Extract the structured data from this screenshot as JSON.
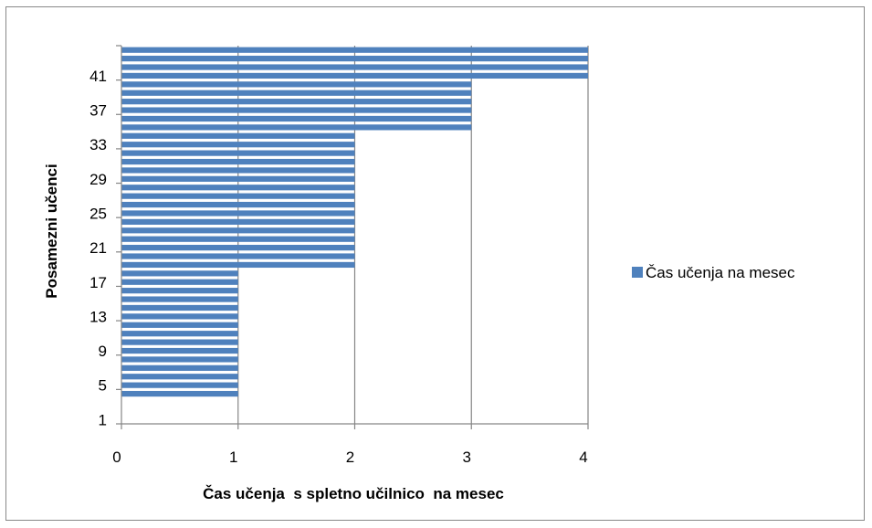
{
  "chart_data": {
    "type": "bar",
    "orientation": "horizontal",
    "title": "",
    "xlabel": "Čas učenja  s spletno učilnico  na mesec",
    "ylabel": "Posamezni učenci",
    "xlim": [
      0,
      4
    ],
    "x_ticks": [
      "0",
      "1",
      "2",
      "3",
      "4"
    ],
    "y_tick_labels": [
      "1",
      "5",
      "9",
      "13",
      "17",
      "21",
      "25",
      "29",
      "33",
      "37",
      "41"
    ],
    "grid": "vertical",
    "legend_position": "right",
    "categories": [
      "1",
      "2",
      "3",
      "4",
      "5",
      "6",
      "7",
      "8",
      "9",
      "10",
      "11",
      "12",
      "13",
      "14",
      "15",
      "16",
      "17",
      "18",
      "19",
      "20",
      "21",
      "22",
      "23",
      "24",
      "25",
      "26",
      "27",
      "28",
      "29",
      "30",
      "31",
      "32",
      "33",
      "34",
      "35",
      "36",
      "37",
      "38",
      "39",
      "40",
      "41",
      "42",
      "43",
      "44"
    ],
    "series": [
      {
        "name": "Čas učenja na mesec",
        "color": "#4F81BD",
        "values": [
          0,
          0,
          0,
          1,
          1,
          1,
          1,
          1,
          1,
          1,
          1,
          1,
          1,
          1,
          1,
          1,
          1,
          1,
          2,
          2,
          2,
          2,
          2,
          2,
          2,
          2,
          2,
          2,
          2,
          2,
          2,
          2,
          2,
          2,
          3,
          3,
          3,
          3,
          3,
          3,
          4,
          4,
          4,
          4
        ]
      }
    ]
  }
}
